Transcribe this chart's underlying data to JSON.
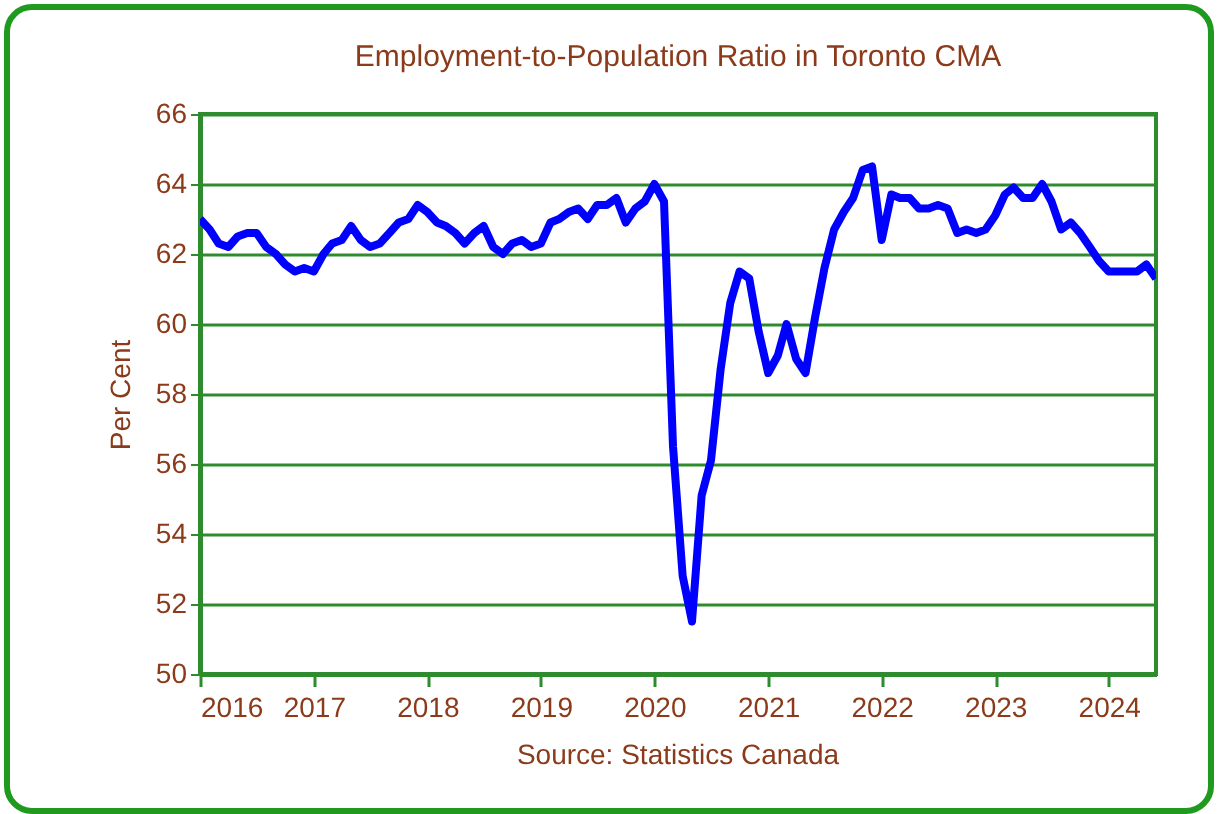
{
  "chart_data": {
    "type": "line",
    "title": "Employment-to-Population  Ratio in Toronto  CMA",
    "ylabel": "Per Cent",
    "annotations": [
      "Source:  Statistics Canada"
    ],
    "x": [
      "2016-01",
      "2016-02",
      "2016-03",
      "2016-04",
      "2016-05",
      "2016-06",
      "2016-07",
      "2016-08",
      "2016-09",
      "2016-10",
      "2016-11",
      "2016-12",
      "2017-01",
      "2017-02",
      "2017-03",
      "2017-04",
      "2017-05",
      "2017-06",
      "2017-07",
      "2017-08",
      "2017-09",
      "2017-10",
      "2017-11",
      "2017-12",
      "2018-01",
      "2018-02",
      "2018-03",
      "2018-04",
      "2018-05",
      "2018-06",
      "2018-07",
      "2018-08",
      "2018-09",
      "2018-10",
      "2018-11",
      "2018-12",
      "2019-01",
      "2019-02",
      "2019-03",
      "2019-04",
      "2019-05",
      "2019-06",
      "2019-07",
      "2019-08",
      "2019-09",
      "2019-10",
      "2019-11",
      "2019-12",
      "2020-01",
      "2020-02",
      "2020-03",
      "2020-04",
      "2020-05",
      "2020-06",
      "2020-07",
      "2020-08",
      "2020-09",
      "2020-10",
      "2020-11",
      "2020-12",
      "2021-01",
      "2021-02",
      "2021-03",
      "2021-04",
      "2021-05",
      "2021-06",
      "2021-07",
      "2021-08",
      "2021-09",
      "2021-10",
      "2021-11",
      "2021-12",
      "2022-01",
      "2022-02",
      "2022-03",
      "2022-04",
      "2022-05",
      "2022-06",
      "2022-07",
      "2022-08",
      "2022-09",
      "2022-10",
      "2022-11",
      "2022-12",
      "2023-01",
      "2023-02",
      "2023-03",
      "2023-04",
      "2023-05",
      "2023-06",
      "2023-07",
      "2023-08",
      "2023-09",
      "2023-10",
      "2023-11",
      "2023-12",
      "2024-01",
      "2024-02",
      "2024-03",
      "2024-04",
      "2024-05",
      "2024-06"
    ],
    "series": [
      {
        "color": "#0000ff",
        "values": [
          63.0,
          62.7,
          62.3,
          62.2,
          62.5,
          62.6,
          62.6,
          62.2,
          62.0,
          61.7,
          61.5,
          61.6,
          61.5,
          62.0,
          62.3,
          62.4,
          62.8,
          62.4,
          62.2,
          62.3,
          62.6,
          62.9,
          63.0,
          63.4,
          63.2,
          62.9,
          62.8,
          62.6,
          62.3,
          62.6,
          62.8,
          62.2,
          62.0,
          62.3,
          62.4,
          62.2,
          62.3,
          62.9,
          63.0,
          63.2,
          63.3,
          63.0,
          63.4,
          63.4,
          63.6,
          62.9,
          63.3,
          63.5,
          64.0,
          63.5,
          56.5,
          52.8,
          51.5,
          55.1,
          56.1,
          58.7,
          60.6,
          61.5,
          61.3,
          59.8,
          58.6,
          59.1,
          60.0,
          59.0,
          58.6,
          60.2,
          61.6,
          62.7,
          63.2,
          63.6,
          64.4,
          64.5,
          62.4,
          63.7,
          63.6,
          63.6,
          63.3,
          63.3,
          63.4,
          63.3,
          62.6,
          62.7,
          62.6,
          62.7,
          63.1,
          63.7,
          63.9,
          63.6,
          63.6,
          64.0,
          63.5,
          62.7,
          62.9,
          62.6,
          62.2,
          61.8,
          61.5,
          61.5,
          61.5,
          61.5,
          61.7,
          61.3
        ]
      }
    ],
    "xlim": [
      "2016-01",
      "2024-06"
    ],
    "xticks": [
      {
        "value": "2016-01",
        "label": "2016"
      },
      {
        "value": "2017-01",
        "label": "2017"
      },
      {
        "value": "2018-01",
        "label": "2018"
      },
      {
        "value": "2019-01",
        "label": "2019"
      },
      {
        "value": "2020-01",
        "label": "2020"
      },
      {
        "value": "2021-01",
        "label": "2021"
      },
      {
        "value": "2022-01",
        "label": "2022"
      },
      {
        "value": "2023-01",
        "label": "2023"
      },
      {
        "value": "2024-01",
        "label": "2024"
      }
    ],
    "ylim": [
      50,
      66
    ],
    "yticks": [
      50,
      52,
      54,
      56,
      58,
      60,
      62,
      64,
      66
    ],
    "grid": "y",
    "line_style": "solid",
    "legend": false
  }
}
